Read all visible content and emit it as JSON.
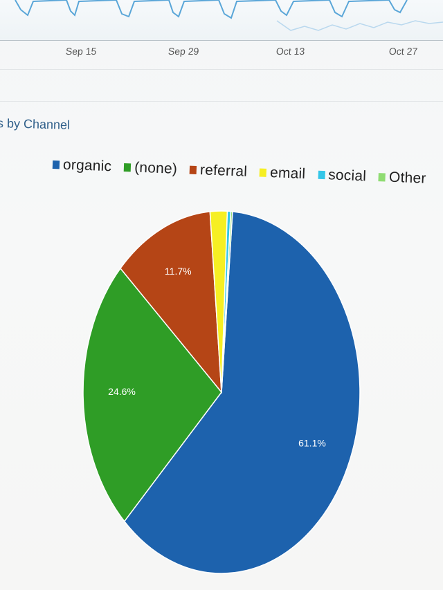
{
  "top_axis": {
    "ticks": [
      "Sep 15",
      "Sep 29",
      "Oct 13",
      "Oct 27"
    ]
  },
  "section_title": "s by Channel",
  "chart_data": {
    "type": "pie",
    "slices": [
      {
        "name": "organic",
        "value": 61.1,
        "label": "61.1%",
        "color": "#1d62ad"
      },
      {
        "name": "(none)",
        "value": 24.6,
        "label": "24.6%",
        "color": "#2f9d26"
      },
      {
        "name": "referral",
        "value": 11.7,
        "label": "11.7%",
        "color": "#b54516"
      },
      {
        "name": "email",
        "value": 2.0,
        "label": "",
        "color": "#f6ef23"
      },
      {
        "name": "social",
        "value": 0.4,
        "label": "",
        "color": "#33c6e8"
      },
      {
        "name": "Other",
        "value": 0.2,
        "label": "",
        "color": "#8fdc72"
      }
    ],
    "legend": "top"
  }
}
